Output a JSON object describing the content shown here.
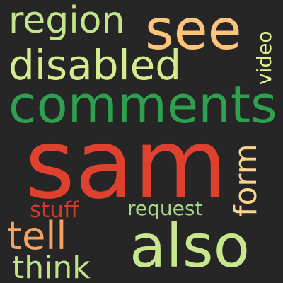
{
  "words": {
    "sam": {
      "text": "sam",
      "color": "#e0402e"
    },
    "comments": {
      "text": "comments",
      "color": "#2ea04f"
    },
    "see": {
      "text": "see",
      "color": "#fec47a"
    },
    "disabled": {
      "text": "disabled",
      "color": "#d5ec8e"
    },
    "region": {
      "text": "region",
      "color": "#c3e58a"
    },
    "also": {
      "text": "also",
      "color": "#c8e68b"
    },
    "tell": {
      "text": "tell",
      "color": "#f4a262"
    },
    "think": {
      "text": "think",
      "color": "#c0e387"
    },
    "stuff": {
      "text": "stuff",
      "color": "#cf3a2c"
    },
    "request": {
      "text": "request",
      "color": "#a9d68b"
    },
    "form": {
      "text": "form",
      "color": "#fbd38e"
    },
    "video": {
      "text": "video",
      "color": "#e4f28f"
    }
  }
}
